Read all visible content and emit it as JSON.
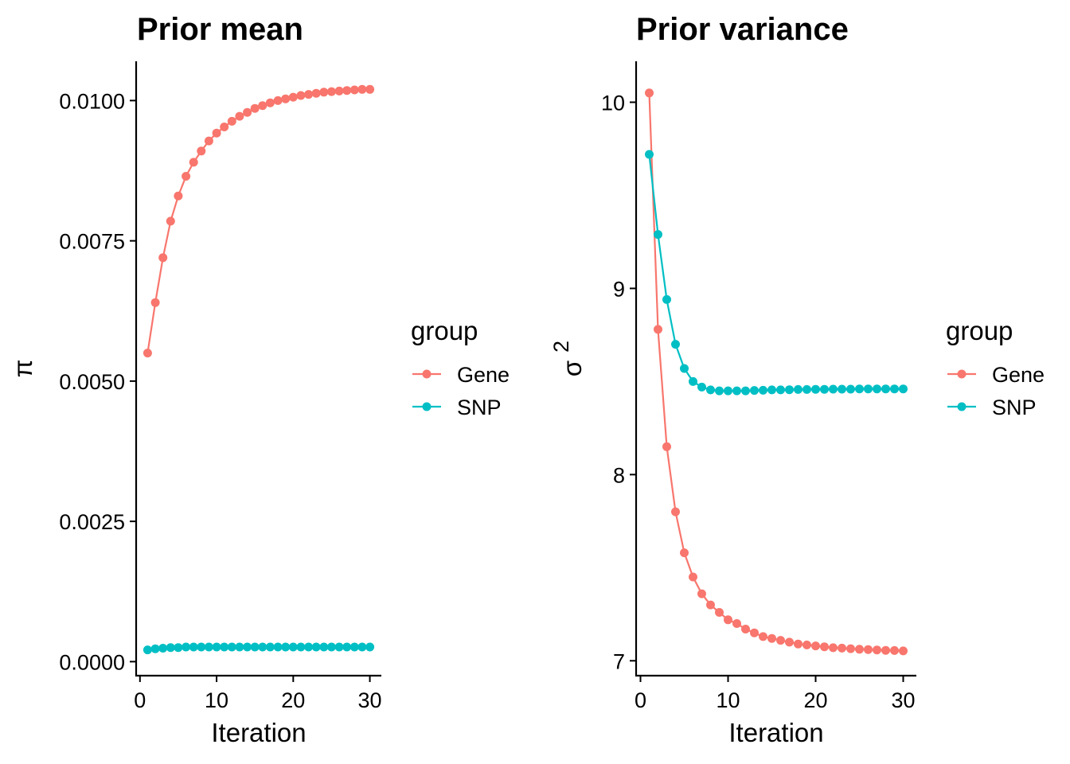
{
  "chart_data": [
    {
      "type": "line",
      "title": "Prior mean",
      "xlabel": "Iteration",
      "ylabel": "π",
      "x_ticks": [
        "0",
        "10",
        "20",
        "30"
      ],
      "y_ticks": [
        "0.0000",
        "0.0025",
        "0.0050",
        "0.0075",
        "0.0100"
      ],
      "xlim": [
        -0.5,
        31.5
      ],
      "ylim": [
        -0.00025,
        0.0107
      ],
      "legend": {
        "title": "group",
        "position": "right"
      },
      "grid": false,
      "x": [
        1,
        2,
        3,
        4,
        5,
        6,
        7,
        8,
        9,
        10,
        11,
        12,
        13,
        14,
        15,
        16,
        17,
        18,
        19,
        20,
        21,
        22,
        23,
        24,
        25,
        26,
        27,
        28,
        29,
        30
      ],
      "series": [
        {
          "name": "Gene",
          "color": "#F8766D",
          "values": [
            0.0055,
            0.0064,
            0.0072,
            0.00785,
            0.0083,
            0.00865,
            0.0089,
            0.0091,
            0.00928,
            0.00942,
            0.00953,
            0.00963,
            0.00972,
            0.00979,
            0.00986,
            0.00991,
            0.00996,
            0.01,
            0.01003,
            0.01006,
            0.01009,
            0.01011,
            0.01013,
            0.01015,
            0.01016,
            0.01017,
            0.01018,
            0.01019,
            0.0102,
            0.0102
          ]
        },
        {
          "name": "SNP",
          "color": "#00BFC4",
          "values": [
            0.00021,
            0.00023,
            0.00024,
            0.00025,
            0.00025,
            0.00026,
            0.00026,
            0.00026,
            0.00026,
            0.00026,
            0.00026,
            0.00026,
            0.00026,
            0.00026,
            0.00026,
            0.00026,
            0.00026,
            0.00026,
            0.00026,
            0.00026,
            0.00026,
            0.00026,
            0.00026,
            0.00026,
            0.00026,
            0.00026,
            0.00026,
            0.00026,
            0.00026,
            0.00026
          ]
        }
      ]
    },
    {
      "type": "line",
      "title": "Prior variance",
      "xlabel": "Iteration",
      "ylabel": "σ",
      "ylabel_superscript": "2",
      "x_ticks": [
        "0",
        "10",
        "20",
        "30"
      ],
      "y_ticks": [
        "7",
        "8",
        "9",
        "10"
      ],
      "xlim": [
        -0.5,
        31.5
      ],
      "ylim": [
        6.92,
        10.22
      ],
      "legend": {
        "title": "group",
        "position": "right"
      },
      "grid": false,
      "x": [
        1,
        2,
        3,
        4,
        5,
        6,
        7,
        8,
        9,
        10,
        11,
        12,
        13,
        14,
        15,
        16,
        17,
        18,
        19,
        20,
        21,
        22,
        23,
        24,
        25,
        26,
        27,
        28,
        29,
        30
      ],
      "series": [
        {
          "name": "Gene",
          "color": "#F8766D",
          "values": [
            10.05,
            8.78,
            8.15,
            7.8,
            7.58,
            7.45,
            7.36,
            7.3,
            7.26,
            7.22,
            7.2,
            7.17,
            7.15,
            7.13,
            7.12,
            7.11,
            7.1,
            7.09,
            7.085,
            7.08,
            7.075,
            7.07,
            7.068,
            7.065,
            7.062,
            7.06,
            7.058,
            7.056,
            7.055,
            7.053
          ]
        },
        {
          "name": "SNP",
          "color": "#00BFC4",
          "values": [
            9.72,
            9.29,
            8.94,
            8.7,
            8.57,
            8.5,
            8.47,
            8.455,
            8.45,
            8.45,
            8.45,
            8.45,
            8.452,
            8.453,
            8.455,
            8.455,
            8.456,
            8.457,
            8.457,
            8.458,
            8.458,
            8.459,
            8.459,
            8.459,
            8.46,
            8.46,
            8.46,
            8.46,
            8.46,
            8.46
          ]
        }
      ]
    }
  ]
}
